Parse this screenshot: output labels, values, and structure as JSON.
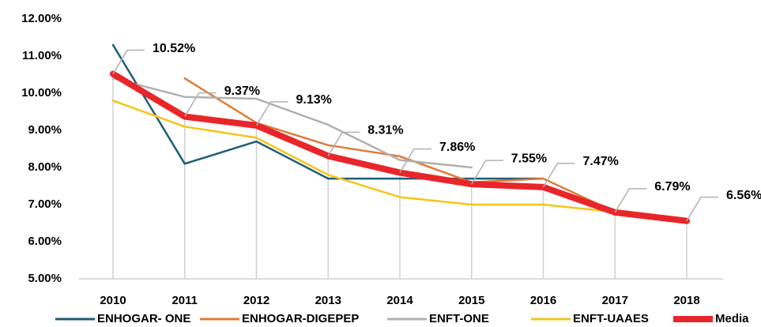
{
  "chart_data": {
    "type": "line",
    "categories": [
      "2010",
      "2011",
      "2012",
      "2013",
      "2014",
      "2015",
      "2016",
      "2017",
      "2018"
    ],
    "ylim": [
      5,
      12
    ],
    "yticks": [
      {
        "value": 5,
        "label": "5.00%"
      },
      {
        "value": 6,
        "label": "6.00%"
      },
      {
        "value": 7,
        "label": "7.00%"
      },
      {
        "value": 8,
        "label": "8.00%"
      },
      {
        "value": 9,
        "label": "9.00%"
      },
      {
        "value": 10,
        "label": "10.00%"
      },
      {
        "value": 11,
        "label": "11.00%"
      },
      {
        "value": 12,
        "label": "12.00%"
      }
    ],
    "legend": "bottom",
    "series": [
      {
        "name": "ENHOGAR- ONE",
        "color": "#1f5c7a",
        "width": 2.5,
        "values": [
          11.3,
          8.1,
          8.7,
          7.7,
          7.7,
          7.7,
          7.7,
          null,
          null
        ]
      },
      {
        "name": "ENHOGAR-DIGEPEP",
        "color": "#e07b39",
        "width": 2.5,
        "values": [
          null,
          10.4,
          9.2,
          8.6,
          8.3,
          7.6,
          7.7,
          6.8,
          null
        ]
      },
      {
        "name": "ENFT-ONE",
        "color": "#b0b0b0",
        "width": 2.5,
        "values": [
          10.4,
          9.9,
          9.85,
          9.15,
          8.2,
          8.0,
          null,
          null,
          null
        ]
      },
      {
        "name": "ENFT-UAAES",
        "color": "#f5c518",
        "width": 2.5,
        "values": [
          9.8,
          9.1,
          8.8,
          7.8,
          7.2,
          7.0,
          7.0,
          6.8,
          null
        ]
      },
      {
        "name": "Media",
        "color": "#e8262a",
        "width": 8,
        "values": [
          10.52,
          9.37,
          9.13,
          8.31,
          7.86,
          7.55,
          7.47,
          6.79,
          6.56
        ],
        "value_labels": [
          "10.52%",
          "9.37%",
          "9.13%",
          "8.31%",
          "7.86%",
          "7.55%",
          "7.47%",
          "6.79%",
          "6.56%"
        ]
      }
    ]
  }
}
